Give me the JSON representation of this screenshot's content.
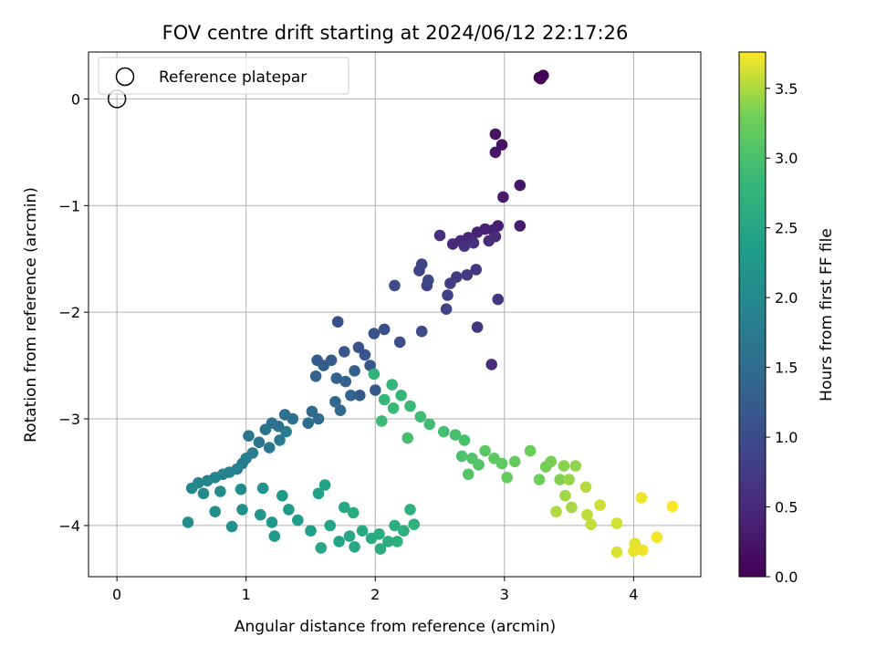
{
  "chart_data": {
    "type": "scatter",
    "title": "FOV centre drift starting at 2024/06/12 22:17:26",
    "xlabel": "Angular distance from reference (arcmin)",
    "ylabel": "Rotation from reference (arcmin)",
    "xlim": [
      -0.22,
      4.52
    ],
    "ylim": [
      -4.48,
      0.44
    ],
    "xticks": [
      0,
      1,
      2,
      3,
      4
    ],
    "yticks": [
      0,
      -1,
      -2,
      -3,
      -4
    ],
    "grid": true,
    "legend": {
      "placement": "top-left",
      "entries": [
        "Reference platepar"
      ]
    },
    "reference_point": {
      "x": 0,
      "y": 0
    },
    "colorbar": {
      "label": "Hours from first FF file",
      "range": [
        0,
        3.76
      ],
      "ticks": [
        "0.0",
        "0.5",
        "1.0",
        "1.5",
        "2.0",
        "2.5",
        "3.0",
        "3.5"
      ],
      "tick_values": [
        0,
        0.5,
        1.0,
        1.5,
        2.0,
        2.5,
        3.0,
        3.5
      ],
      "colormap": "viridis"
    },
    "points": [
      [
        3.27,
        0.2,
        0.02
      ],
      [
        3.29,
        0.21,
        0.03
      ],
      [
        3.3,
        0.22,
        0.04
      ],
      [
        3.28,
        0.19,
        0.05
      ],
      [
        2.93,
        -0.33,
        0.2
      ],
      [
        2.98,
        -0.43,
        0.22
      ],
      [
        2.93,
        -0.5,
        0.25
      ],
      [
        3.12,
        -0.81,
        0.27
      ],
      [
        2.99,
        -0.92,
        0.3
      ],
      [
        3.12,
        -1.19,
        0.33
      ],
      [
        2.95,
        -1.19,
        0.35
      ],
      [
        2.91,
        -1.23,
        0.38
      ],
      [
        2.85,
        -1.22,
        0.4
      ],
      [
        2.79,
        -1.25,
        0.42
      ],
      [
        2.72,
        -1.3,
        0.45
      ],
      [
        2.66,
        -1.33,
        0.47
      ],
      [
        2.6,
        -1.36,
        0.5
      ],
      [
        2.88,
        -1.33,
        0.52
      ],
      [
        2.93,
        -1.29,
        0.55
      ],
      [
        2.5,
        -1.28,
        0.57
      ],
      [
        2.76,
        -1.35,
        0.6
      ],
      [
        2.69,
        -1.38,
        0.62
      ],
      [
        2.95,
        -1.88,
        0.65
      ],
      [
        2.9,
        -2.49,
        0.55
      ],
      [
        2.79,
        -2.14,
        0.68
      ],
      [
        2.78,
        -1.6,
        0.7
      ],
      [
        2.71,
        -1.65,
        0.72
      ],
      [
        2.63,
        -1.67,
        0.75
      ],
      [
        2.58,
        -1.73,
        0.77
      ],
      [
        2.56,
        -1.84,
        0.8
      ],
      [
        2.55,
        -1.97,
        0.82
      ],
      [
        2.4,
        -1.75,
        0.85
      ],
      [
        2.34,
        -1.61,
        0.87
      ],
      [
        2.36,
        -1.55,
        0.9
      ],
      [
        2.41,
        -1.7,
        0.92
      ],
      [
        2.15,
        -1.75,
        0.95
      ],
      [
        2.36,
        -2.18,
        0.97
      ],
      [
        2.19,
        -2.28,
        1.0
      ],
      [
        2.07,
        -2.16,
        1.02
      ],
      [
        1.71,
        -2.09,
        1.05
      ],
      [
        1.99,
        -2.2,
        1.07
      ],
      [
        1.87,
        -2.33,
        1.1
      ],
      [
        1.92,
        -2.4,
        1.12
      ],
      [
        1.96,
        -2.5,
        1.15
      ],
      [
        1.76,
        -2.37,
        1.17
      ],
      [
        1.66,
        -2.45,
        1.2
      ],
      [
        1.55,
        -2.45,
        1.22
      ],
      [
        1.6,
        -2.5,
        1.25
      ],
      [
        1.84,
        -2.55,
        1.27
      ],
      [
        1.77,
        -2.65,
        1.3
      ],
      [
        1.7,
        -2.62,
        1.32
      ],
      [
        1.54,
        -2.6,
        1.35
      ],
      [
        1.81,
        -2.78,
        1.37
      ],
      [
        1.69,
        -2.84,
        1.4
      ],
      [
        1.73,
        -2.92,
        1.42
      ],
      [
        1.88,
        -2.78,
        1.2
      ],
      [
        2.0,
        -2.73,
        1.17
      ],
      [
        1.51,
        -2.93,
        1.45
      ],
      [
        1.56,
        -3.0,
        1.47
      ],
      [
        1.48,
        -3.04,
        1.5
      ],
      [
        1.36,
        -3.0,
        1.52
      ],
      [
        1.3,
        -2.96,
        1.55
      ],
      [
        1.25,
        -3.07,
        1.57
      ],
      [
        1.2,
        -3.04,
        1.6
      ],
      [
        1.15,
        -3.1,
        1.62
      ],
      [
        1.02,
        -3.16,
        1.65
      ],
      [
        1.1,
        -3.22,
        1.67
      ],
      [
        1.18,
        -3.27,
        1.7
      ],
      [
        1.26,
        -3.2,
        1.72
      ],
      [
        1.31,
        -3.12,
        1.75
      ],
      [
        1.05,
        -3.32,
        1.77
      ],
      [
        1.0,
        -3.37,
        1.8
      ],
      [
        0.97,
        -3.42,
        1.82
      ],
      [
        0.93,
        -3.47,
        1.85
      ],
      [
        0.87,
        -3.5,
        1.87
      ],
      [
        0.82,
        -3.52,
        1.9
      ],
      [
        0.76,
        -3.55,
        1.92
      ],
      [
        0.7,
        -3.58,
        1.95
      ],
      [
        0.63,
        -3.6,
        1.97
      ],
      [
        0.58,
        -3.65,
        2.0
      ],
      [
        0.67,
        -3.7,
        2.02
      ],
      [
        0.8,
        -3.68,
        2.05
      ],
      [
        0.96,
        -3.66,
        2.07
      ],
      [
        0.55,
        -3.97,
        2.1
      ],
      [
        0.76,
        -3.87,
        2.12
      ],
      [
        0.89,
        -4.01,
        2.15
      ],
      [
        0.97,
        -3.85,
        2.17
      ],
      [
        1.13,
        -3.65,
        2.2
      ],
      [
        1.11,
        -3.9,
        2.22
      ],
      [
        1.2,
        -3.97,
        2.25
      ],
      [
        1.22,
        -4.1,
        2.27
      ],
      [
        1.28,
        -3.72,
        2.3
      ],
      [
        1.33,
        -3.85,
        2.32
      ],
      [
        1.4,
        -3.95,
        2.35
      ],
      [
        1.5,
        -4.05,
        2.37
      ],
      [
        1.56,
        -3.7,
        2.4
      ],
      [
        1.61,
        -3.62,
        2.42
      ],
      [
        1.65,
        -4.0,
        2.45
      ],
      [
        1.72,
        -4.15,
        2.47
      ],
      [
        1.8,
        -4.1,
        2.5
      ],
      [
        1.84,
        -4.2,
        2.52
      ],
      [
        1.9,
        -4.05,
        2.55
      ],
      [
        1.97,
        -4.12,
        2.57
      ],
      [
        2.03,
        -4.08,
        2.6
      ],
      [
        2.1,
        -4.15,
        2.62
      ],
      [
        2.15,
        -4.0,
        2.65
      ],
      [
        2.22,
        -4.05,
        2.67
      ],
      [
        2.27,
        -3.85,
        2.7
      ],
      [
        2.3,
        -3.99,
        2.72
      ],
      [
        1.76,
        -3.83,
        2.55
      ],
      [
        1.83,
        -3.88,
        2.6
      ],
      [
        2.04,
        -4.22,
        2.62
      ],
      [
        2.17,
        -4.15,
        2.68
      ],
      [
        1.58,
        -4.21,
        2.5
      ],
      [
        1.99,
        -2.58,
        2.75
      ],
      [
        2.13,
        -2.68,
        2.77
      ],
      [
        2.2,
        -2.78,
        2.8
      ],
      [
        2.07,
        -2.82,
        2.82
      ],
      [
        2.14,
        -2.9,
        2.85
      ],
      [
        2.27,
        -2.88,
        2.87
      ],
      [
        2.35,
        -2.98,
        2.9
      ],
      [
        2.05,
        -3.02,
        2.88
      ],
      [
        2.42,
        -3.05,
        2.92
      ],
      [
        2.53,
        -3.12,
        2.95
      ],
      [
        2.62,
        -3.15,
        2.97
      ],
      [
        2.25,
        -3.18,
        2.94
      ],
      [
        2.69,
        -3.2,
        3.0
      ],
      [
        2.67,
        -3.35,
        3.02
      ],
      [
        2.75,
        -3.37,
        3.05
      ],
      [
        2.8,
        -3.43,
        3.07
      ],
      [
        2.72,
        -3.52,
        3.1
      ],
      [
        2.85,
        -3.3,
        3.12
      ],
      [
        2.92,
        -3.37,
        3.15
      ],
      [
        2.98,
        -3.42,
        3.17
      ],
      [
        3.02,
        -3.55,
        3.2
      ],
      [
        3.08,
        -3.4,
        3.22
      ],
      [
        3.2,
        -3.3,
        3.25
      ],
      [
        3.27,
        -3.57,
        3.27
      ],
      [
        3.32,
        -3.45,
        3.3
      ],
      [
        3.36,
        -3.4,
        3.32
      ],
      [
        3.43,
        -3.57,
        3.35
      ],
      [
        3.46,
        -3.44,
        3.37
      ],
      [
        3.55,
        -3.44,
        3.4
      ],
      [
        3.5,
        -3.57,
        3.42
      ],
      [
        3.47,
        -3.72,
        3.45
      ],
      [
        3.52,
        -3.83,
        3.47
      ],
      [
        3.4,
        -3.87,
        3.5
      ],
      [
        3.63,
        -3.64,
        3.52
      ],
      [
        3.64,
        -3.9,
        3.55
      ],
      [
        3.67,
        -3.99,
        3.57
      ],
      [
        3.74,
        -3.81,
        3.6
      ],
      [
        3.87,
        -3.98,
        3.62
      ],
      [
        3.87,
        -4.25,
        3.65
      ],
      [
        4.01,
        -4.17,
        3.67
      ],
      [
        4.0,
        -4.24,
        3.69
      ],
      [
        4.07,
        -4.23,
        3.71
      ],
      [
        4.06,
        -3.74,
        3.7
      ],
      [
        4.18,
        -4.11,
        3.73
      ],
      [
        4.3,
        -3.82,
        3.75
      ]
    ]
  }
}
